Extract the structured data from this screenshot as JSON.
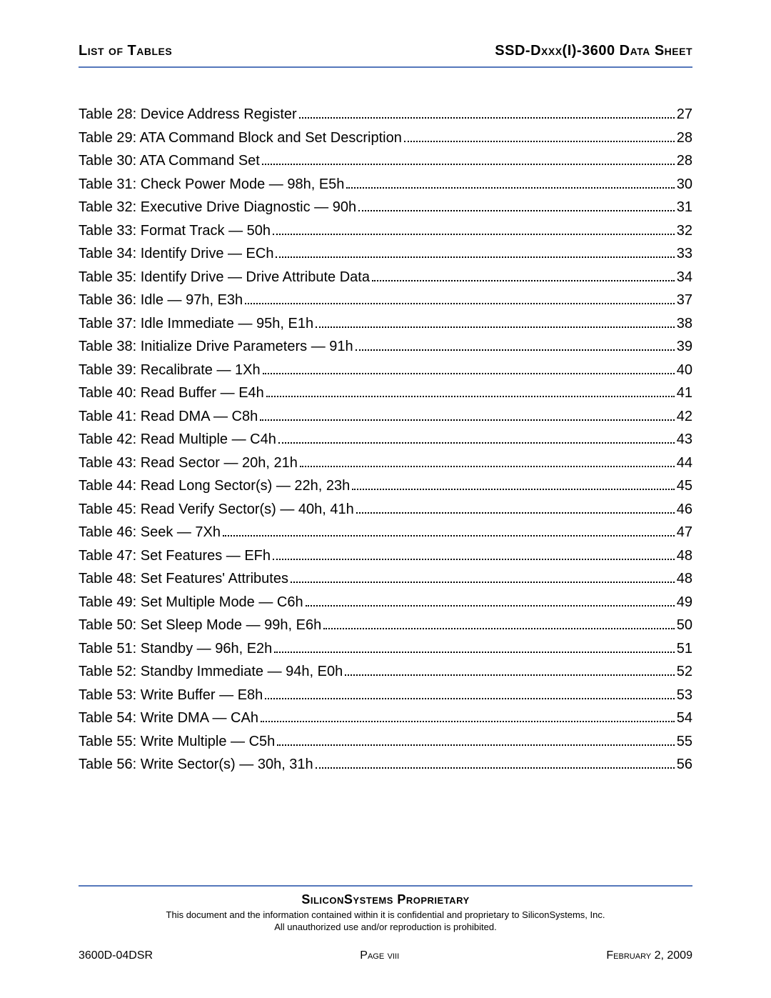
{
  "header": {
    "left": "List of Tables",
    "right": "SSD-Dxxx(I)-3600 Data Sheet"
  },
  "toc": [
    {
      "title": "Table 28: Device Address Register",
      "page": "27"
    },
    {
      "title": "Table 29: ATA Command Block and Set Description",
      "page": "28"
    },
    {
      "title": "Table 30: ATA Command Set",
      "page": "28"
    },
    {
      "title": "Table 31: Check Power Mode — 98h, E5h",
      "page": "30"
    },
    {
      "title": "Table 32: Executive Drive Diagnostic — 90h",
      "page": "31"
    },
    {
      "title": "Table 33: Format Track — 50h",
      "page": "32"
    },
    {
      "title": "Table 34: Identify Drive — ECh",
      "page": "33"
    },
    {
      "title": "Table 35: Identify Drive — Drive Attribute Data",
      "page": "34"
    },
    {
      "title": "Table 36: Idle — 97h, E3h",
      "page": "37"
    },
    {
      "title": "Table 37: Idle Immediate — 95h, E1h",
      "page": "38"
    },
    {
      "title": "Table 38: Initialize Drive Parameters — 91h",
      "page": "39"
    },
    {
      "title": "Table 39: Recalibrate — 1Xh",
      "page": "40"
    },
    {
      "title": "Table 40: Read Buffer — E4h",
      "page": "41"
    },
    {
      "title": "Table 41: Read DMA — C8h",
      "page": "42"
    },
    {
      "title": "Table 42: Read Multiple — C4h",
      "page": "43"
    },
    {
      "title": "Table 43: Read Sector — 20h, 21h",
      "page": "44"
    },
    {
      "title": "Table 44: Read Long Sector(s) — 22h, 23h",
      "page": "45"
    },
    {
      "title": "Table 45: Read Verify Sector(s) — 40h, 41h",
      "page": "46"
    },
    {
      "title": "Table 46: Seek — 7Xh",
      "page": "47"
    },
    {
      "title": "Table 47: Set Features — EFh",
      "page": "48"
    },
    {
      "title": "Table 48: Set Features' Attributes",
      "page": "48"
    },
    {
      "title": "Table 49: Set Multiple Mode — C6h",
      "page": "49"
    },
    {
      "title": "Table 50: Set Sleep Mode — 99h, E6h",
      "page": "50"
    },
    {
      "title": "Table 51: Standby — 96h, E2h",
      "page": "51"
    },
    {
      "title": "Table 52: Standby Immediate — 94h, E0h",
      "page": "52"
    },
    {
      "title": "Table 53: Write Buffer — E8h",
      "page": "53"
    },
    {
      "title": "Table 54: Write DMA — CAh",
      "page": "54"
    },
    {
      "title": "Table 55: Write Multiple — C5h",
      "page": "55"
    },
    {
      "title": "Table 56: Write Sector(s) — 30h, 31h",
      "page": "56"
    }
  ],
  "footer": {
    "proprietary": "SiliconSystems Proprietary",
    "disclaimer1": "This document and the information contained within it is confidential and proprietary to SiliconSystems, Inc.",
    "disclaimer2": "All unauthorized use and/or reproduction is prohibited.",
    "docnum": "3600D-04DSR",
    "pagenum": "Page viii",
    "date": "February 2, 2009"
  },
  "colors": {
    "rule": "#5577bb",
    "text": "#000000",
    "background": "#ffffff"
  }
}
